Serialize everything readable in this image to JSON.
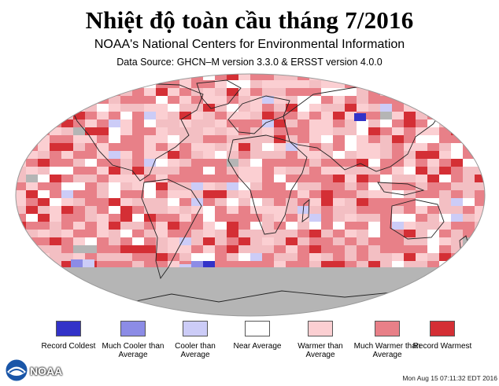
{
  "header": {
    "title": "Nhiệt độ toàn cầu tháng 7/2016",
    "subtitle": "NOAA's National Centers for Environmental Information",
    "source": "Data Source: GHCN–M version 3.3.0 & ERSST version 4.0.0"
  },
  "legend": {
    "items": [
      {
        "label": "Record Coldest",
        "color": "#3232c8"
      },
      {
        "label": "Much Cooler than Average",
        "color": "#8c8ce6"
      },
      {
        "label": "Cooler than Average",
        "color": "#ccccf7"
      },
      {
        "label": "Near Average",
        "color": "#ffffff"
      },
      {
        "label": "Warmer than Average",
        "color": "#fbcfd2"
      },
      {
        "label": "Much Warmer than Average",
        "color": "#e88088"
      },
      {
        "label": "Record Warmest",
        "color": "#d42f35"
      }
    ]
  },
  "colors": {
    "no_data": "#b5b5b5",
    "land_outline": "#222222"
  },
  "logo": {
    "text": "NOAA",
    "icon": "noaa-logo-icon"
  },
  "timestamp": "Mon Aug 15 07:11:32 EDT 2016"
}
